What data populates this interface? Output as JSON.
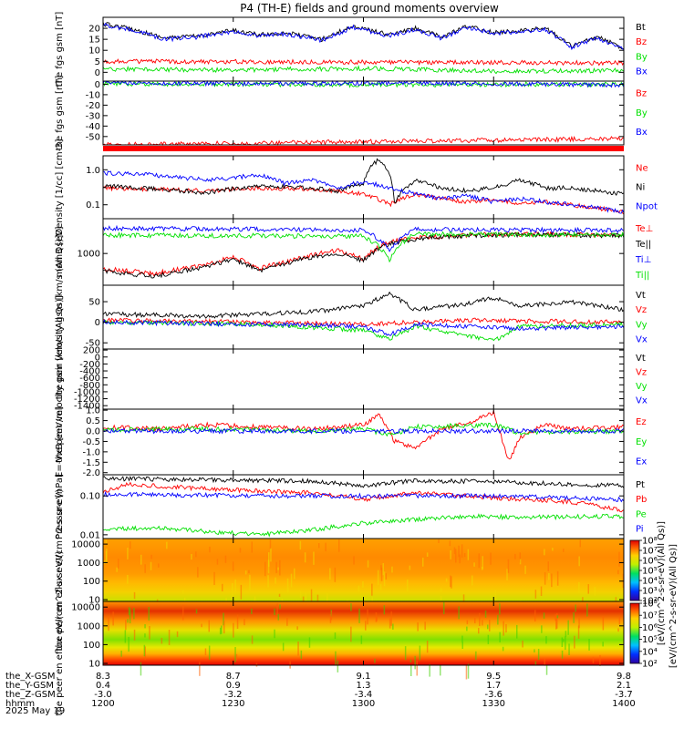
{
  "title": "P4 (TH-E) fields and ground moments overview",
  "date_label": "2025 May 19",
  "orbit_rows": [
    {
      "label": "the_X-GSM",
      "values": [
        "8.3",
        "8.7",
        "9.1",
        "9.5",
        "9.8"
      ]
    },
    {
      "label": "the_Y-GSM",
      "values": [
        "0.4",
        "0.9",
        "1.3",
        "1.7",
        "2.1"
      ]
    },
    {
      "label": "the_Z-GSM",
      "values": [
        "-3.0",
        "-3.2",
        "-3.4",
        "-3.6",
        "-3.7"
      ]
    },
    {
      "label": "hhmm",
      "values": [
        "1200",
        "1230",
        "1300",
        "1330",
        "1400"
      ]
    }
  ],
  "colors": {
    "black": "#000000",
    "red": "#ff0000",
    "green": "#00e000",
    "blue": "#0000ff"
  },
  "chart_data": [
    {
      "type": "line",
      "ylabel": "the fgs gsm [nT]",
      "ylim": [
        -4,
        25
      ],
      "yticks": [
        0,
        5,
        10,
        15,
        20
      ],
      "series": [
        {
          "name": "Bt",
          "color": "#000000",
          "x": [
            0,
            0.05,
            0.12,
            0.18,
            0.25,
            0.3,
            0.35,
            0.42,
            0.48,
            0.55,
            0.6,
            0.65,
            0.7,
            0.75,
            0.8,
            0.85,
            0.9,
            0.95,
            1
          ],
          "values": [
            22,
            20,
            15.5,
            16.5,
            19,
            17,
            18,
            15,
            21,
            17,
            20,
            16,
            21,
            18,
            19,
            20,
            12,
            16,
            11
          ]
        },
        {
          "name": "Bz",
          "color": "#ff0000",
          "x": [
            0,
            1
          ],
          "values": [
            5,
            4.2
          ]
        },
        {
          "name": "By",
          "color": "#00e000",
          "x": [
            0,
            0.25,
            0.5,
            0.75,
            1
          ],
          "values": [
            1.5,
            1,
            1.8,
            0.5,
            0.8
          ]
        },
        {
          "name": "Bx",
          "color": "#0000ff",
          "x": [
            0,
            0.05,
            0.12,
            0.18,
            0.25,
            0.3,
            0.35,
            0.42,
            0.48,
            0.55,
            0.6,
            0.65,
            0.7,
            0.75,
            0.8,
            0.85,
            0.9,
            0.95,
            1
          ],
          "values": [
            21.5,
            19.5,
            15,
            16,
            18.5,
            16.5,
            17.5,
            14.5,
            20.5,
            16.5,
            19.5,
            15.5,
            20.5,
            17.5,
            18.5,
            19.5,
            11.5,
            15.5,
            10.5
          ]
        }
      ]
    },
    {
      "type": "line",
      "ylabel": "the fgs gsm [nT]",
      "ylim": [
        -58,
        3
      ],
      "yticks": [
        0,
        -10,
        -20,
        -30,
        -40,
        -50
      ],
      "series": [
        {
          "name": "Bz",
          "color": "#ff0000",
          "x": [
            0,
            1
          ],
          "values": [
            -58,
            -52
          ]
        },
        {
          "name": "By",
          "color": "#00e000",
          "x": [
            0,
            0.5,
            1
          ],
          "values": [
            0.5,
            -0.5,
            0
          ]
        },
        {
          "name": "Bx",
          "color": "#0000ff",
          "x": [
            0,
            0.3,
            0.6,
            1
          ],
          "values": [
            1.5,
            0.5,
            1.5,
            -1
          ]
        }
      ]
    },
    {
      "type": "line",
      "ylabel": "Density [1/cc] [cm-3]",
      "log": true,
      "ylim": [
        0.04,
        2.5
      ],
      "ytick_values": [
        1.0,
        0.1
      ],
      "ytick_labels": [
        "1.0",
        "0.1"
      ],
      "series": [
        {
          "name": "Ne",
          "color": "#ff0000",
          "x": [
            0,
            0.1,
            0.2,
            0.3,
            0.4,
            0.45,
            0.5,
            0.55,
            0.6,
            0.65,
            0.7,
            0.75,
            0.8,
            0.85,
            0.9,
            0.95,
            1
          ],
          "values": [
            0.3,
            0.28,
            0.25,
            0.3,
            0.28,
            0.25,
            0.2,
            0.1,
            0.2,
            0.15,
            0.12,
            0.15,
            0.1,
            0.12,
            0.1,
            0.08,
            0.06
          ]
        },
        {
          "name": "Ni",
          "color": "#000000",
          "x": [
            0,
            0.1,
            0.2,
            0.3,
            0.4,
            0.45,
            0.5,
            0.53,
            0.56,
            0.6,
            0.65,
            0.7,
            0.75,
            0.8,
            0.85,
            0.9,
            0.95,
            1
          ],
          "values": [
            0.35,
            0.28,
            0.22,
            0.35,
            0.3,
            0.25,
            0.4,
            2.0,
            0.1,
            0.5,
            0.3,
            0.25,
            0.3,
            0.5,
            0.3,
            0.3,
            0.25,
            0.2
          ]
        },
        {
          "name": "Npot",
          "color": "#0000ff",
          "x": [
            0,
            0.1,
            0.2,
            0.25,
            0.3,
            0.35,
            0.4,
            0.45,
            0.5,
            0.55,
            0.6,
            0.65,
            0.7,
            0.75,
            0.8,
            0.85,
            0.9,
            0.95,
            1
          ],
          "values": [
            0.8,
            0.7,
            0.5,
            0.6,
            0.7,
            0.4,
            0.5,
            0.3,
            0.45,
            0.3,
            0.2,
            0.15,
            0.18,
            0.12,
            0.15,
            0.12,
            0.1,
            0.08,
            0.06
          ]
        }
      ]
    },
    {
      "type": "line",
      "ylabel": "mom3 [eV]",
      "log": true,
      "ylim": [
        150,
        8000
      ],
      "ytick_values": [
        1000
      ],
      "ytick_labels": [
        "1000"
      ],
      "series": [
        {
          "name": "Te⊥",
          "color": "#ff0000",
          "x": [
            0,
            0.1,
            0.2,
            0.25,
            0.3,
            0.35,
            0.4,
            0.45,
            0.5,
            0.55,
            0.6,
            0.65,
            0.7,
            0.8,
            0.9,
            1
          ],
          "values": [
            400,
            300,
            500,
            800,
            400,
            600,
            900,
            1200,
            700,
            2000,
            2500,
            2800,
            3000,
            3200,
            3100,
            3000
          ]
        },
        {
          "name": "Te||",
          "color": "#000000",
          "x": [
            0,
            0.1,
            0.2,
            0.25,
            0.3,
            0.35,
            0.4,
            0.45,
            0.5,
            0.55,
            0.6,
            0.65,
            0.7,
            0.8,
            0.9,
            1
          ],
          "values": [
            350,
            250,
            450,
            700,
            350,
            550,
            800,
            1000,
            650,
            1800,
            2400,
            2700,
            2900,
            3100,
            3000,
            2900
          ]
        },
        {
          "name": "Ti⊥",
          "color": "#0000ff",
          "x": [
            0,
            0.25,
            0.5,
            0.55,
            0.6,
            0.75,
            1
          ],
          "values": [
            4500,
            4300,
            4000,
            1200,
            4200,
            4100,
            4000
          ]
        },
        {
          "name": "Ti||",
          "color": "#00e000",
          "x": [
            0,
            0.25,
            0.5,
            0.55,
            0.6,
            0.75,
            1
          ],
          "values": [
            3000,
            2900,
            2800,
            600,
            3200,
            3100,
            3000
          ]
        }
      ]
    },
    {
      "type": "line",
      "ylabel": "the peir velocity gsm [km/s (All Qs)]",
      "ylim": [
        -65,
        90
      ],
      "yticks": [
        50,
        0,
        -50
      ],
      "series": [
        {
          "name": "Vt",
          "color": "#000000",
          "x": [
            0,
            0.2,
            0.4,
            0.5,
            0.55,
            0.6,
            0.7,
            0.75,
            0.8,
            0.9,
            1
          ],
          "values": [
            20,
            15,
            25,
            40,
            70,
            30,
            45,
            60,
            40,
            50,
            30
          ]
        },
        {
          "name": "Vz",
          "color": "#ff0000",
          "x": [
            0,
            0.3,
            0.5,
            0.7,
            1
          ],
          "values": [
            5,
            0,
            -5,
            5,
            0
          ]
        },
        {
          "name": "Vy",
          "color": "#00e000",
          "x": [
            0,
            0.3,
            0.5,
            0.55,
            0.6,
            0.75,
            0.8,
            1
          ],
          "values": [
            0,
            -5,
            -20,
            -40,
            -10,
            -45,
            -10,
            -5
          ]
        },
        {
          "name": "Vx",
          "color": "#0000ff",
          "x": [
            0,
            0.3,
            0.5,
            0.55,
            0.6,
            0.8,
            1
          ],
          "values": [
            0,
            -5,
            -10,
            -30,
            -5,
            -15,
            -10
          ]
        }
      ]
    },
    {
      "type": "line",
      "ylabel": "the peer velocity gsm [km/s (All Qs)]",
      "ylim": [
        -1500,
        230
      ],
      "yticks": [
        200,
        0,
        -200,
        -400,
        -600,
        -800,
        -1000,
        -1200,
        -1400
      ],
      "series": [
        {
          "name": "Vt",
          "color": "#000000",
          "x": [],
          "values": []
        },
        {
          "name": "Vz",
          "color": "#ff0000",
          "x": [],
          "values": []
        },
        {
          "name": "Vy",
          "color": "#00e000",
          "x": [],
          "values": []
        },
        {
          "name": "Vx",
          "color": "#0000ff",
          "x": [],
          "values": []
        }
      ]
    },
    {
      "type": "line",
      "ylabel": "E=-VxB [mV/m]",
      "ylim": [
        -2.1,
        1.05
      ],
      "yticks": [
        1.0,
        0.5,
        0.0,
        -0.5,
        -1.0,
        -1.5,
        -2.0
      ],
      "ytick_labels": [
        "1.0",
        "0.5",
        "0.0",
        "-0.5",
        "-1.0",
        "-1.5",
        "-2.0"
      ],
      "series": [
        {
          "name": "Ez",
          "color": "#ff0000",
          "x": [
            0,
            0.1,
            0.2,
            0.3,
            0.4,
            0.5,
            0.53,
            0.56,
            0.6,
            0.65,
            0.7,
            0.75,
            0.78,
            0.8,
            0.85,
            0.9,
            1
          ],
          "values": [
            0.2,
            0.1,
            0.3,
            0.2,
            0.1,
            0.3,
            0.8,
            -0.5,
            -0.8,
            0.1,
            0.4,
            0.9,
            -1.5,
            -0.3,
            0.3,
            0.1,
            0.2
          ]
        },
        {
          "name": "Ey",
          "color": "#00e000",
          "x": [
            0,
            0.2,
            0.4,
            0.5,
            0.55,
            0.6,
            0.75,
            0.8,
            1
          ],
          "values": [
            0.05,
            0.1,
            0,
            0.1,
            -0.2,
            0.2,
            0.3,
            -0.1,
            0
          ]
        },
        {
          "name": "Ex",
          "color": "#0000ff",
          "x": [
            0,
            0.5,
            1
          ],
          "values": [
            0,
            0,
            0
          ]
        }
      ]
    },
    {
      "type": "line",
      "ylabel": "Pressure [nPa]",
      "log": true,
      "ylim": [
        0.008,
        0.35
      ],
      "ytick_values": [
        0.1,
        0.01
      ],
      "ytick_labels": [
        "0.10",
        "0.01"
      ],
      "series": [
        {
          "name": "Pt",
          "color": "#000000",
          "x": [
            0,
            0.2,
            0.4,
            0.5,
            0.6,
            0.75,
            0.9,
            1
          ],
          "values": [
            0.28,
            0.26,
            0.24,
            0.18,
            0.25,
            0.23,
            0.2,
            0.18
          ]
        },
        {
          "name": "Pb",
          "color": "#ff0000",
          "x": [
            0,
            0.05,
            0.2,
            0.4,
            0.5,
            0.6,
            0.75,
            0.9,
            1
          ],
          "values": [
            0.12,
            0.2,
            0.15,
            0.12,
            0.08,
            0.12,
            0.09,
            0.07,
            0.04
          ]
        },
        {
          "name": "Pe",
          "color": "#00e000",
          "x": [
            0,
            0.1,
            0.2,
            0.3,
            0.4,
            0.5,
            0.6,
            0.7,
            0.8,
            1
          ],
          "values": [
            0.014,
            0.015,
            0.012,
            0.01,
            0.013,
            0.02,
            0.025,
            0.03,
            0.028,
            0.03
          ]
        },
        {
          "name": "Pi",
          "color": "#0000ff",
          "x": [
            0,
            0.3,
            0.5,
            0.7,
            0.9,
            1
          ],
          "values": [
            0.11,
            0.1,
            0.1,
            0.1,
            0.09,
            0.08
          ]
        }
      ]
    },
    {
      "type": "heatmap",
      "ylabel": "the peir en eflux eV/(cm^2-s-sr-eV)",
      "log": true,
      "ylim": [
        8,
        20000
      ],
      "ytick_values": [
        10000,
        1000,
        100,
        10
      ],
      "ytick_labels": [
        "10000",
        "1000",
        "100",
        "10"
      ]
    },
    {
      "type": "heatmap",
      "ylabel": "the peer en eflux eV/(cm^2-s-sr-eV)",
      "log": true,
      "ylim": [
        8,
        20000
      ],
      "ytick_values": [
        10000,
        1000,
        100,
        10
      ],
      "ytick_labels": [
        "10000",
        "1000",
        "100",
        "10"
      ]
    }
  ],
  "colorbars": [
    {
      "ticks": [
        "10⁸",
        "10⁷",
        "10⁶",
        "10⁵",
        "10⁴",
        "10³",
        "10²"
      ]
    },
    {
      "ticks": [
        "10⁸",
        "10⁷",
        "10⁶",
        "10⁵",
        "10⁴",
        "10²"
      ]
    }
  ],
  "colorbar_label": "[eV/(cm^2-s-sr-eV)(All Qs)]",
  "colorbar_label_top": "[eV/(cm^2-s-sr-eV)(All Qs)]"
}
